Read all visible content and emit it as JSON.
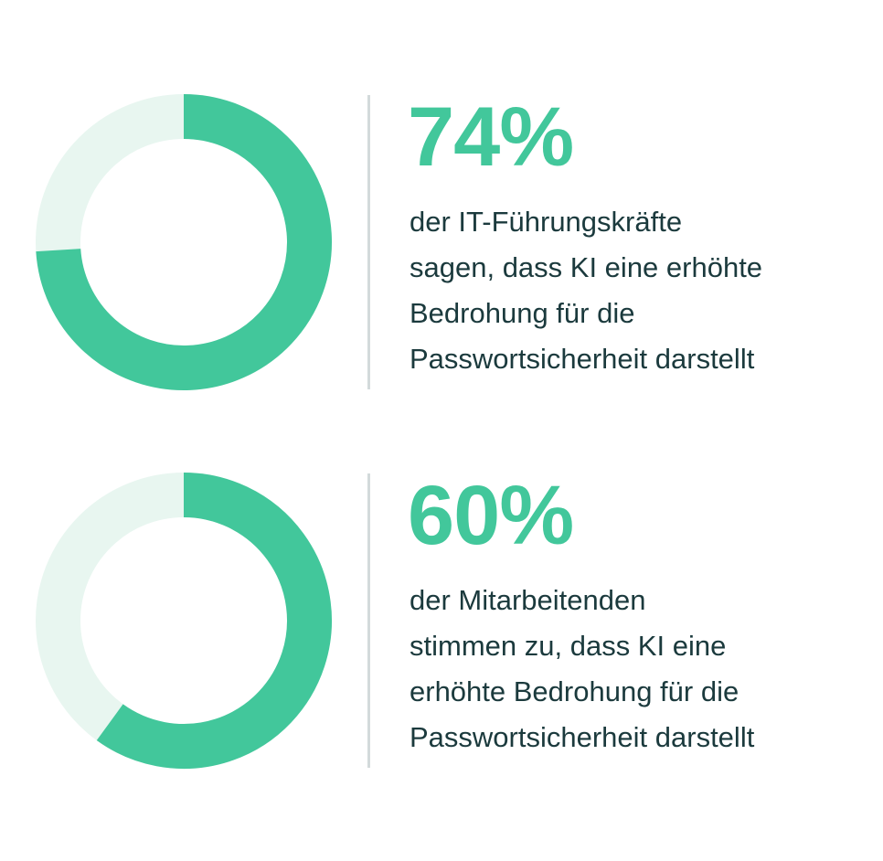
{
  "colors": {
    "accent": "#42c79b",
    "track": "#e8f6f0",
    "text": "#1b3a3d",
    "divider": "#d3dadb"
  },
  "chart_data": [
    {
      "type": "pie",
      "style": "donut",
      "percent_label": "74%",
      "values": [
        74,
        26
      ],
      "colors": [
        "#42c79b",
        "#e8f6f0"
      ],
      "description_lines": [
        "der IT-Führungskräfte",
        "sagen, dass KI eine erhöhte",
        "Bedrohung für die",
        "Passwortsicherheit darstellt"
      ]
    },
    {
      "type": "pie",
      "style": "donut",
      "percent_label": "60%",
      "values": [
        60,
        40
      ],
      "colors": [
        "#42c79b",
        "#e8f6f0"
      ],
      "description_lines": [
        "der Mitarbeitenden",
        "stimmen zu, dass KI eine",
        "erhöhte Bedrohung für die",
        "Passwortsicherheit darstellt"
      ]
    }
  ]
}
